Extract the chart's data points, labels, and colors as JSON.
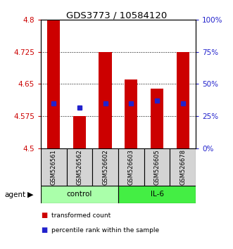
{
  "title": "GDS3773 / 10584120",
  "samples": [
    "GSM526561",
    "GSM526562",
    "GSM526602",
    "GSM526603",
    "GSM526605",
    "GSM526678"
  ],
  "groups": [
    "control",
    "control",
    "control",
    "IL-6",
    "IL-6",
    "IL-6"
  ],
  "transformed_counts": [
    4.8,
    4.575,
    4.725,
    4.66,
    4.64,
    4.725
  ],
  "percentile_y_values": [
    4.605,
    4.595,
    4.605,
    4.605,
    4.612,
    4.605
  ],
  "ymin": 4.5,
  "ymax": 4.8,
  "yticks_left": [
    4.5,
    4.575,
    4.65,
    4.725,
    4.8
  ],
  "yticks_right_pct": [
    0,
    25,
    50,
    75,
    100
  ],
  "bar_color": "#cc0000",
  "dot_color": "#2222cc",
  "bar_width": 0.5,
  "control_color": "#aaffaa",
  "il6_color": "#44ee44",
  "legend_items": [
    "transformed count",
    "percentile rank within the sample"
  ],
  "legend_colors": [
    "#cc0000",
    "#2222cc"
  ],
  "left_tick_color": "#cc0000",
  "right_tick_color": "#2222cc"
}
